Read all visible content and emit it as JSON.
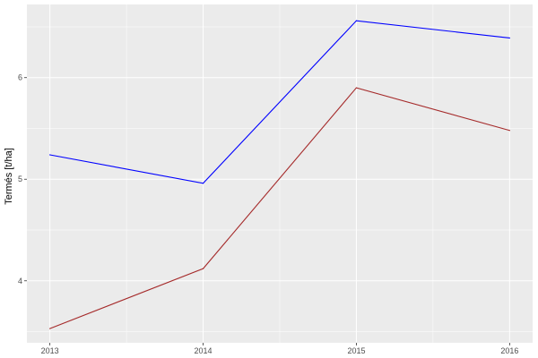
{
  "chart_data": {
    "type": "line",
    "title": "",
    "xlabel": "",
    "ylabel": "Termés [t/ha]",
    "x": [
      2013,
      2014,
      2015,
      2016
    ],
    "xticks": [
      "2013",
      "2014",
      "2015",
      "2016"
    ],
    "yticks": [
      "4",
      "5",
      "6"
    ],
    "xlim": [
      2012.85,
      2016.15
    ],
    "ylim": [
      3.39,
      6.72
    ],
    "grid": true,
    "legend": "none",
    "background": "#EBEBEB",
    "series": [
      {
        "color": "#0000FF",
        "values": [
          5.24,
          4.96,
          6.56,
          6.39
        ]
      },
      {
        "color": "#A52A2A",
        "values": [
          3.53,
          4.12,
          5.9,
          5.48
        ]
      }
    ]
  }
}
